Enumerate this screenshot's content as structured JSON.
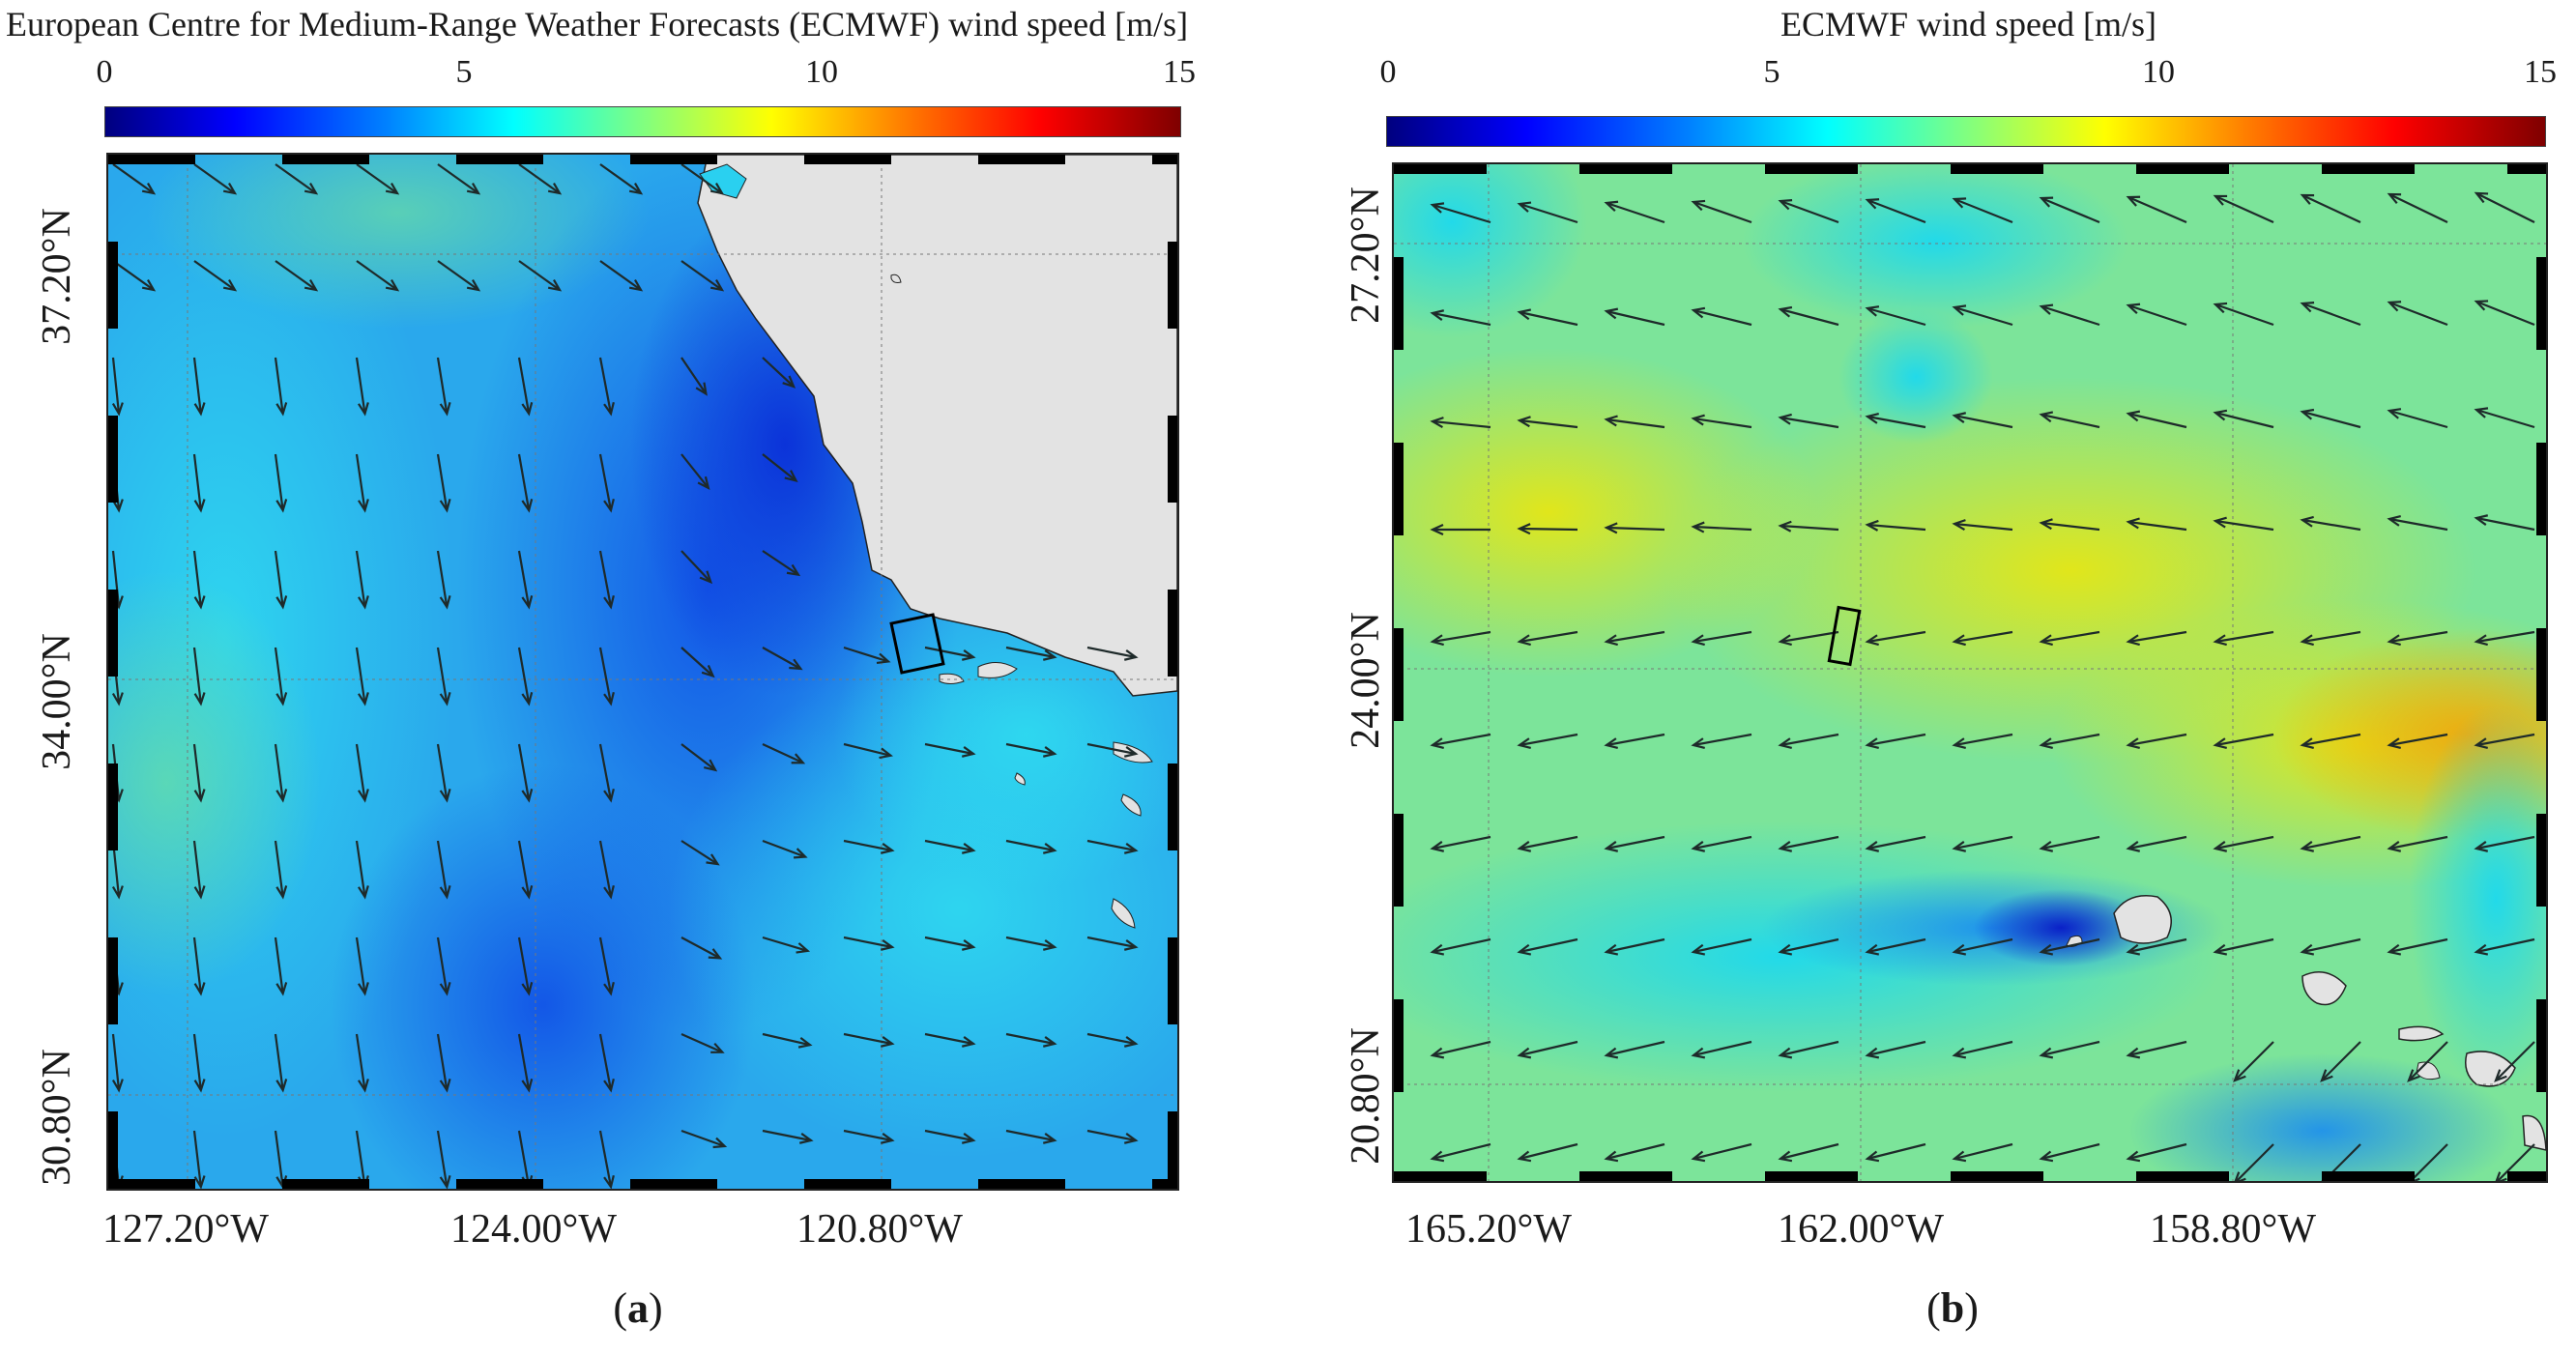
{
  "panel_a": {
    "colorbar_title": "European Centre for Medium-Range Weather Forecasts (ECMWF) wind speed [m/s]",
    "colorbar_ticks": [
      "0",
      "5",
      "10",
      "15"
    ],
    "lat_labels": [
      "37.20°N",
      "34.00°N",
      "30.80°N"
    ],
    "lon_labels": [
      "127.20°W",
      "124.00°W",
      "120.80°W"
    ],
    "caption_letter": "a"
  },
  "panel_b": {
    "colorbar_title": "ECMWF wind speed [m/s]",
    "colorbar_ticks": [
      "0",
      "5",
      "10",
      "15"
    ],
    "lat_labels": [
      "27.20°N",
      "24.00°N",
      "20.80°N"
    ],
    "lon_labels": [
      "165.20°W",
      "162.00°W",
      "158.80°W"
    ],
    "caption_letter": "b"
  },
  "colors": {
    "land": "#e3e3e3",
    "arrow": "#1e2a2a",
    "colormap": [
      "#00007f",
      "#0000ff",
      "#0080ff",
      "#00ffff",
      "#80ff80",
      "#ffff00",
      "#ff8000",
      "#ff0000",
      "#7f0000"
    ]
  },
  "colorbar_range": [
    0,
    15
  ]
}
